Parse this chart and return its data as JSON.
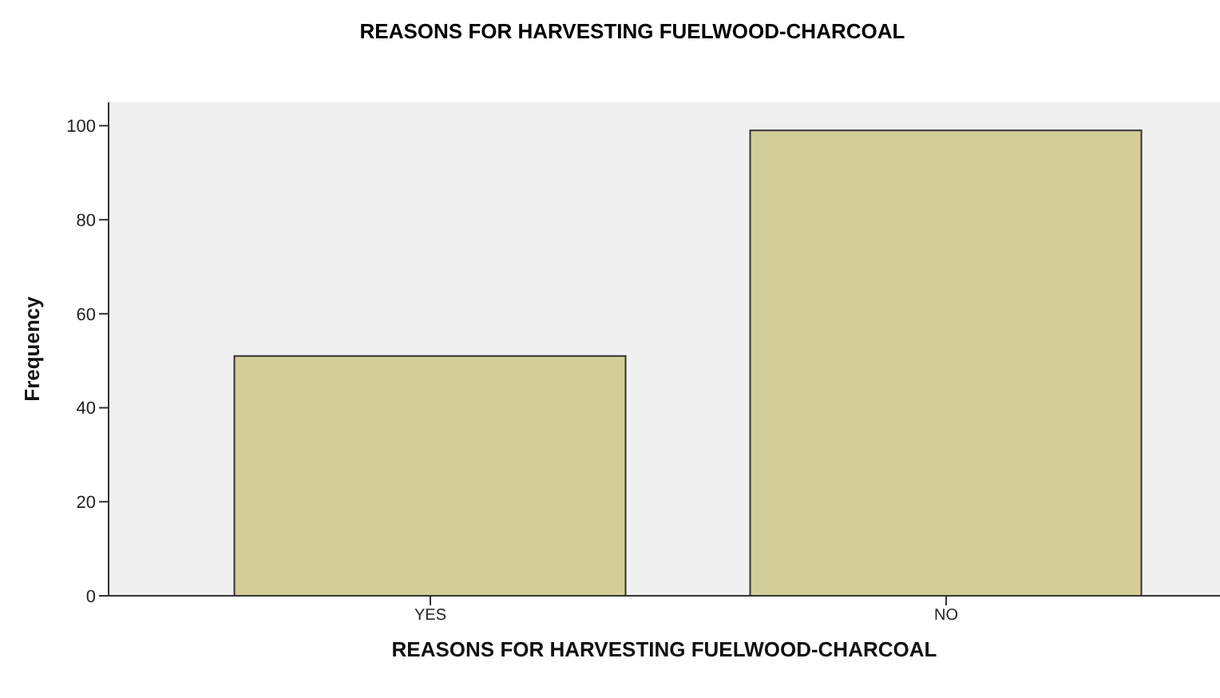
{
  "chart_data": {
    "type": "bar",
    "title": "REASONS FOR HARVESTING FUELWOOD-CHARCOAL",
    "xlabel": "REASONS FOR HARVESTING FUELWOOD-CHARCOAL",
    "ylabel": "Frequency",
    "categories": [
      "YES",
      "NO"
    ],
    "values": [
      51,
      99
    ],
    "color": "#d3cd97",
    "ylim": [
      0,
      105
    ],
    "yticks": [
      0,
      20,
      40,
      60,
      80,
      100
    ],
    "grid": false
  }
}
